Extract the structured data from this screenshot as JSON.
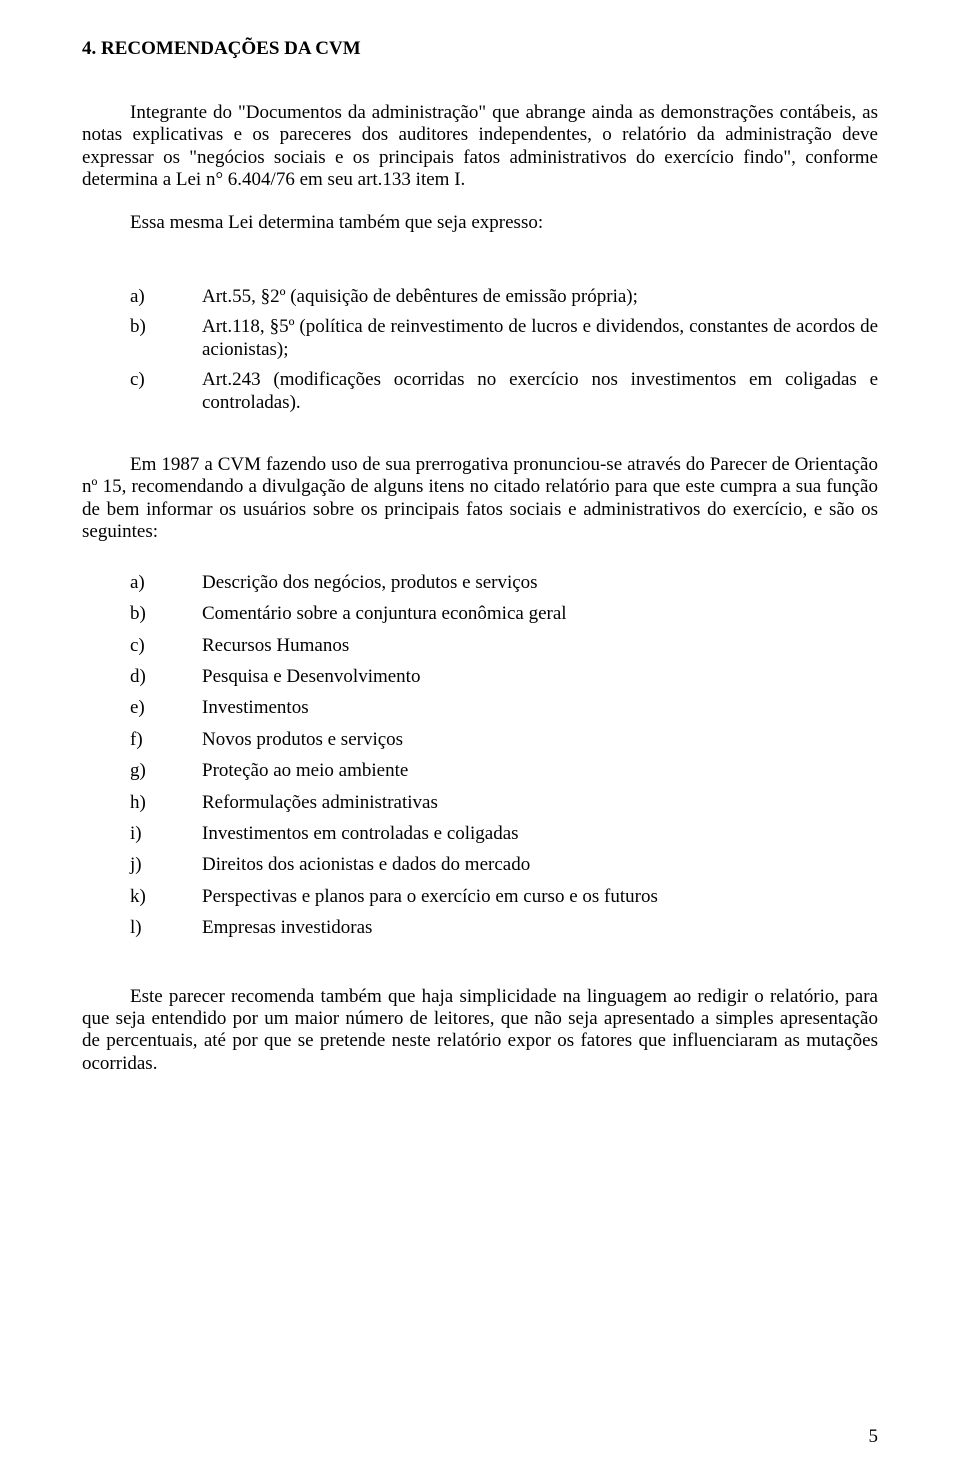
{
  "heading": "4. RECOMENDAÇÕES DA CVM",
  "p1": "Integrante do \"Documentos da administração\" que abrange ainda as demonstrações contábeis, as notas explicativas e os pareceres dos auditores independentes, o relatório da administração deve expressar os \"negócios sociais e os principais fatos administrativos do exercício findo\", conforme determina a Lei n° 6.404/76 em seu art.133 item I.",
  "p2": "Essa mesma Lei determina também que seja expresso:",
  "firstList": {
    "a": {
      "label": "a)",
      "text": "Art.55, §2º (aquisição de debêntures de emissão própria);"
    },
    "b": {
      "label": "b)",
      "text": "Art.118, §5º (política de reinvestimento de lucros e dividendos, constantes de acordos de acionistas);"
    },
    "c": {
      "label": "c)",
      "text": "Art.243 (modificações ocorridas no exercício nos investimentos em coligadas e controladas)."
    }
  },
  "p3": "Em 1987 a CVM fazendo uso de sua prerrogativa pronunciou-se através do Parecer de Orientação nº 15, recomendando a divulgação de alguns itens no citado relatório para que este cumpra a sua função de bem informar os usuários sobre os principais fatos sociais e administrativos do exercício, e são os seguintes:",
  "secondList": {
    "a": {
      "label": "a)",
      "text": "Descrição dos negócios, produtos e serviços"
    },
    "b": {
      "label": "b)",
      "text": "Comentário sobre a conjuntura econômica geral"
    },
    "c": {
      "label": "c)",
      "text": "Recursos Humanos"
    },
    "d": {
      "label": "d)",
      "text": "Pesquisa e Desenvolvimento"
    },
    "e": {
      "label": "e)",
      "text": "Investimentos"
    },
    "f": {
      "label": "f)",
      "text": "Novos produtos e serviços"
    },
    "g": {
      "label": "g)",
      "text": "Proteção ao meio ambiente"
    },
    "h": {
      "label": "h)",
      "text": "Reformulações administrativas"
    },
    "i": {
      "label": "i)",
      "text": "Investimentos em controladas e coligadas"
    },
    "j": {
      "label": "j)",
      "text": "Direitos dos acionistas e dados do mercado"
    },
    "k": {
      "label": "k)",
      "text": "Perspectivas e planos para o exercício em curso e os futuros"
    },
    "l": {
      "label": "l)",
      "text": "Empresas investidoras"
    }
  },
  "p4": "Este parecer recomenda também que haja simplicidade na linguagem ao redigir o relatório, para que seja entendido por um maior número de leitores, que não seja apresentado a simples apresentação de percentuais, até por que se pretende neste relatório expor os fatores que influenciaram as mutações ocorridas.",
  "pageNumber": "5"
}
